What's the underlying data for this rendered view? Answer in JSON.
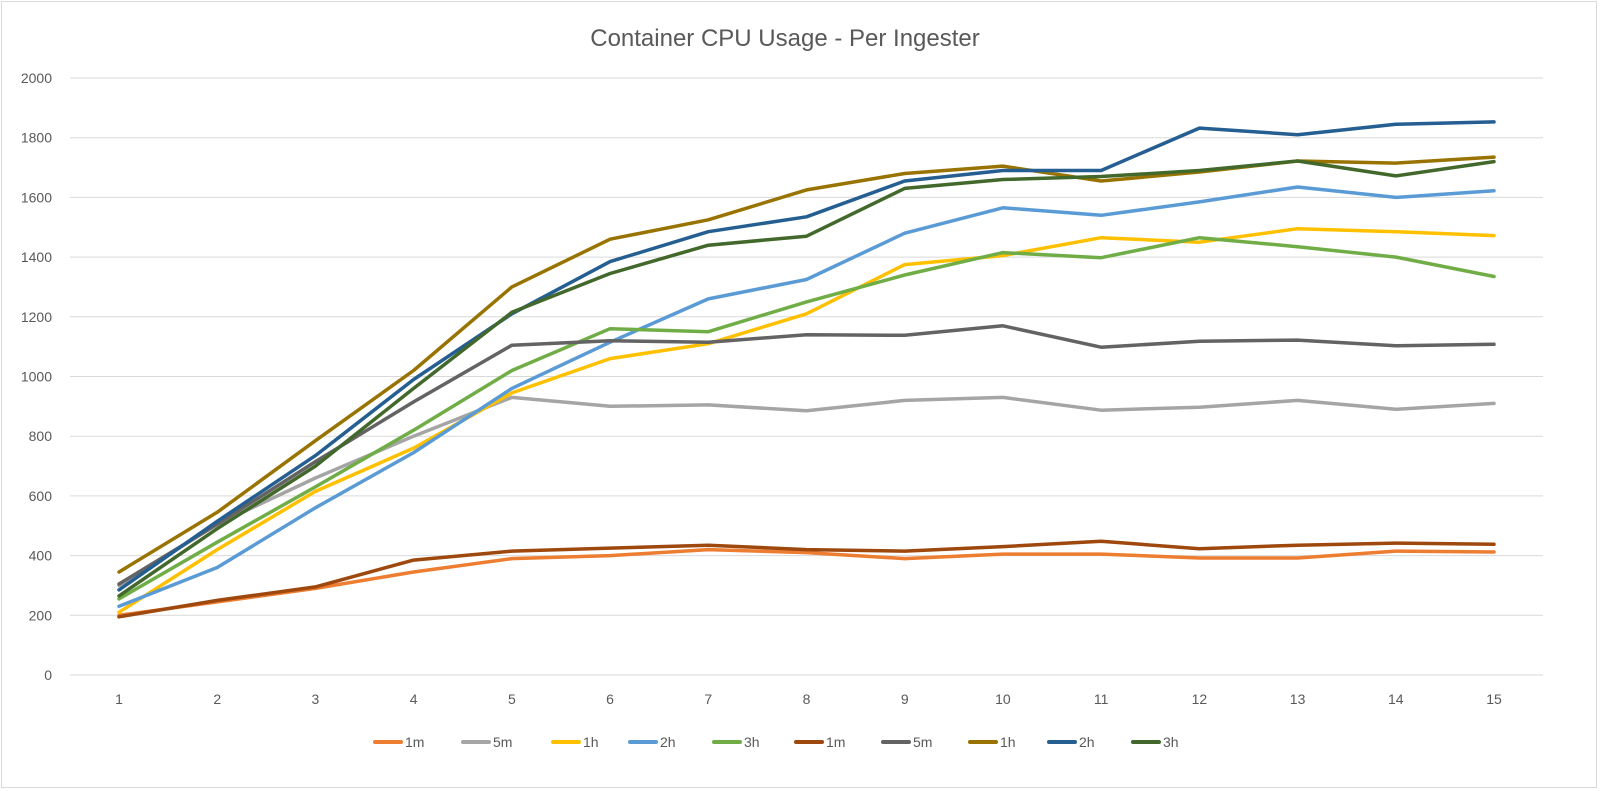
{
  "chart_data": {
    "type": "line",
    "title": "Container CPU Usage - Per Ingester",
    "xlabel": "",
    "ylabel": "",
    "x": [
      1,
      2,
      3,
      4,
      5,
      6,
      7,
      8,
      9,
      10,
      11,
      12,
      13,
      14,
      15
    ],
    "ylim": [
      0,
      2000
    ],
    "yticks": [
      0,
      200,
      400,
      600,
      800,
      1000,
      1200,
      1400,
      1600,
      1800,
      2000
    ],
    "grid": true,
    "legend": "bottom",
    "series": [
      {
        "name": "1m",
        "color": "#ED7D31",
        "values": [
          200,
          245,
          290,
          345,
          390,
          400,
          420,
          410,
          390,
          405,
          405,
          392,
          392,
          415,
          412
        ]
      },
      {
        "name": "5m",
        "color": "#A5A5A5",
        "values": [
          300,
          505,
          660,
          800,
          930,
          900,
          905,
          885,
          920,
          930,
          887,
          897,
          920,
          890,
          910
        ]
      },
      {
        "name": "1h",
        "color": "#FFC000",
        "values": [
          210,
          420,
          615,
          760,
          945,
          1060,
          1110,
          1210,
          1375,
          1405,
          1465,
          1450,
          1495,
          1485,
          1472
        ]
      },
      {
        "name": "2h",
        "color": "#5B9BD5",
        "values": [
          230,
          360,
          560,
          745,
          960,
          1115,
          1260,
          1325,
          1480,
          1565,
          1540,
          1585,
          1635,
          1600,
          1622
        ]
      },
      {
        "name": "3h",
        "color": "#70AD47",
        "values": [
          255,
          445,
          630,
          820,
          1020,
          1160,
          1150,
          1250,
          1340,
          1415,
          1398,
          1465,
          1435,
          1400,
          1335
        ]
      },
      {
        "name": "1m",
        "color": "#9E480E",
        "values": [
          195,
          250,
          295,
          385,
          415,
          425,
          435,
          420,
          415,
          430,
          448,
          423,
          435,
          442,
          438
        ]
      },
      {
        "name": "5m",
        "color": "#636363",
        "values": [
          305,
          505,
          715,
          915,
          1105,
          1120,
          1115,
          1140,
          1138,
          1170,
          1098,
          1118,
          1122,
          1103,
          1108
        ]
      },
      {
        "name": "1h",
        "color": "#997300",
        "values": [
          345,
          545,
          785,
          1020,
          1300,
          1460,
          1525,
          1625,
          1680,
          1705,
          1655,
          1685,
          1722,
          1715,
          1735
        ]
      },
      {
        "name": "2h",
        "color": "#255E91",
        "values": [
          285,
          515,
          735,
          990,
          1210,
          1385,
          1485,
          1535,
          1655,
          1690,
          1690,
          1832,
          1810,
          1845,
          1853
        ]
      },
      {
        "name": "3h",
        "color": "#43682B",
        "values": [
          265,
          490,
          700,
          960,
          1215,
          1345,
          1440,
          1470,
          1630,
          1660,
          1670,
          1690,
          1722,
          1672,
          1720
        ]
      }
    ]
  }
}
